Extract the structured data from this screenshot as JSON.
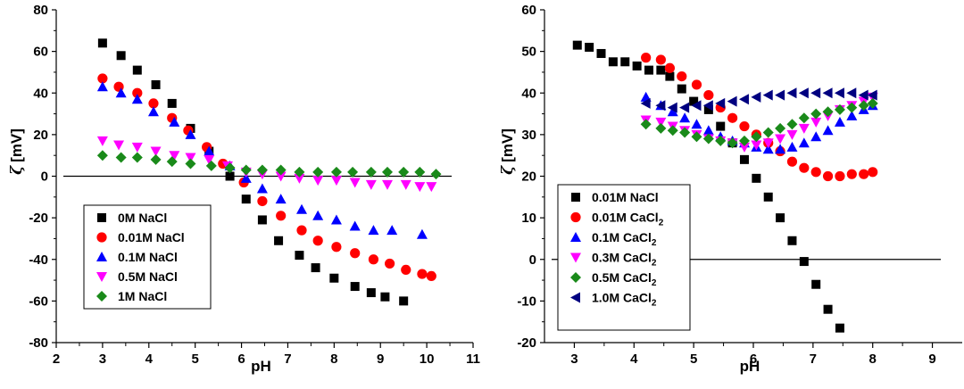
{
  "chart_data": [
    {
      "type": "scatter",
      "id": "left",
      "title": "",
      "xlabel": "pH",
      "ylabel": "ζ [mV]",
      "ylabel_symbol": "ζ",
      "ylabel_unit": "[mV]",
      "xlim": [
        2,
        11
      ],
      "ylim": [
        -80,
        80
      ],
      "x_ticks": [
        2,
        3,
        4,
        5,
        6,
        7,
        8,
        9,
        10,
        11
      ],
      "y_ticks": [
        -80,
        -60,
        -40,
        -20,
        0,
        20,
        40,
        60,
        80
      ],
      "zero_line": true,
      "legend": "bottom-left",
      "series": [
        {
          "name": "0M NaCl",
          "marker": "square",
          "color": "#000000",
          "x": [
            3.0,
            3.4,
            3.75,
            4.15,
            4.5,
            4.9,
            5.3,
            5.75,
            6.1,
            6.45,
            6.8,
            7.25,
            7.6,
            8.0,
            8.45,
            8.8,
            9.1,
            9.5
          ],
          "y": [
            64,
            58,
            51,
            44,
            35,
            23,
            12,
            0,
            -11,
            -21,
            -31,
            -38,
            -44,
            -49,
            -53,
            -56,
            -58,
            -60
          ]
        },
        {
          "name": "0.01M NaCl",
          "marker": "circle",
          "color": "#ff0000",
          "x": [
            3.0,
            3.35,
            3.75,
            4.1,
            4.5,
            4.85,
            5.25,
            5.6,
            6.05,
            6.45,
            6.85,
            7.3,
            7.65,
            8.05,
            8.45,
            8.85,
            9.2,
            9.55,
            9.9,
            10.1
          ],
          "y": [
            47,
            43,
            40,
            35,
            28,
            22,
            14,
            6,
            -3,
            -12,
            -19,
            -26,
            -31,
            -34,
            -37,
            -40,
            -42,
            -45,
            -47,
            -48
          ]
        },
        {
          "name": "0.1M NaCl",
          "marker": "triangle-up",
          "color": "#0000ff",
          "x": [
            3.0,
            3.4,
            3.75,
            4.1,
            4.55,
            4.9,
            5.3,
            5.75,
            6.1,
            6.45,
            6.85,
            7.3,
            7.65,
            8.05,
            8.45,
            8.85,
            9.25,
            9.9
          ],
          "y": [
            43,
            40,
            37,
            31,
            26,
            20,
            12,
            5,
            -1,
            -6,
            -11,
            -16,
            -19,
            -21,
            -24,
            -26,
            -26,
            -28
          ]
        },
        {
          "name": "0.5M NaCl",
          "marker": "triangle-down",
          "color": "#ff00ff",
          "x": [
            3.0,
            3.35,
            3.75,
            4.15,
            4.55,
            4.9,
            5.3,
            5.7,
            6.1,
            6.45,
            6.85,
            7.25,
            7.65,
            8.05,
            8.45,
            8.8,
            9.15,
            9.55,
            9.85,
            10.1
          ],
          "y": [
            17,
            15,
            14,
            12,
            10,
            9,
            8,
            5,
            2,
            1,
            0,
            -1,
            -2,
            -2,
            -3,
            -4,
            -4,
            -4,
            -5,
            -5
          ]
        },
        {
          "name": "1M NaCl",
          "marker": "diamond",
          "color": "#1a8a1a",
          "x": [
            3.0,
            3.4,
            3.75,
            4.15,
            4.5,
            4.9,
            5.35,
            5.75,
            6.1,
            6.45,
            6.85,
            7.25,
            7.65,
            8.05,
            8.4,
            8.8,
            9.15,
            9.5,
            9.85,
            10.2
          ],
          "y": [
            10,
            9,
            9,
            8,
            7,
            6,
            5,
            4,
            3,
            3,
            3,
            2,
            2,
            2,
            2,
            2,
            2,
            2,
            2,
            1
          ]
        }
      ]
    },
    {
      "type": "scatter",
      "id": "right",
      "title": "",
      "xlabel": "pH",
      "ylabel": "ζ [mV]",
      "ylabel_symbol": "ζ",
      "ylabel_unit": "[mV]",
      "xlim": [
        2.5,
        9.5
      ],
      "ylim": [
        -20,
        60
      ],
      "x_ticks": [
        3,
        4,
        5,
        6,
        7,
        8,
        9
      ],
      "y_ticks": [
        -20,
        -10,
        0,
        10,
        20,
        30,
        40,
        50,
        60
      ],
      "zero_line": true,
      "legend": "bottom-left",
      "series": [
        {
          "name": "0.01M NaCl",
          "legend_main": "0.01M NaCl",
          "legend_sub": "",
          "marker": "square",
          "color": "#000000",
          "x": [
            3.05,
            3.25,
            3.45,
            3.65,
            3.85,
            4.05,
            4.25,
            4.45,
            4.6,
            4.8,
            5.0,
            5.25,
            5.45,
            5.65,
            5.85,
            6.05,
            6.25,
            6.45,
            6.65,
            6.85,
            7.05,
            7.25,
            7.45
          ],
          "y": [
            51.5,
            51,
            49.5,
            47.5,
            47.5,
            46.5,
            45.5,
            45.5,
            44,
            41,
            38,
            36,
            32,
            28,
            24,
            19.5,
            15,
            10,
            4.5,
            -0.5,
            -6,
            -12,
            -16.5
          ]
        },
        {
          "name": "0.01M CaCl2",
          "legend_main": "0.01M CaCl",
          "legend_sub": "2",
          "marker": "circle",
          "color": "#ff0000",
          "x": [
            4.2,
            4.45,
            4.6,
            4.8,
            5.05,
            5.25,
            5.45,
            5.65,
            5.85,
            6.05,
            6.25,
            6.45,
            6.65,
            6.85,
            7.05,
            7.25,
            7.45,
            7.65,
            7.85,
            8.0
          ],
          "y": [
            48.5,
            48,
            46,
            44,
            42,
            39.5,
            36.5,
            34,
            32,
            30,
            28,
            26,
            23.5,
            22,
            21,
            20,
            20,
            20.5,
            20.5,
            21
          ]
        },
        {
          "name": "0.1M CaCl2",
          "legend_main": "0.1M CaCl",
          "legend_sub": "2",
          "marker": "triangle-up",
          "color": "#0000ff",
          "x": [
            4.2,
            4.45,
            4.65,
            4.85,
            5.05,
            5.25,
            5.45,
            5.65,
            5.85,
            6.05,
            6.25,
            6.45,
            6.65,
            6.85,
            7.05,
            7.25,
            7.45,
            7.65,
            7.85,
            8.0
          ],
          "y": [
            39,
            37,
            35.5,
            34,
            32.5,
            31,
            29.5,
            28.5,
            28,
            27,
            26.5,
            26.5,
            27,
            28,
            29.5,
            31,
            33,
            34.5,
            36,
            37
          ]
        },
        {
          "name": "0.3M CaCl2",
          "legend_main": "0.3M CaCl",
          "legend_sub": "2",
          "marker": "triangle-down",
          "color": "#ff00ff",
          "x": [
            4.2,
            4.45,
            4.65,
            4.85,
            5.05,
            5.25,
            5.45,
            5.65,
            5.85,
            6.05,
            6.25,
            6.45,
            6.65,
            6.85,
            7.05,
            7.25,
            7.45,
            7.65,
            7.85,
            8.0
          ],
          "y": [
            33.5,
            33,
            32,
            31,
            30,
            29,
            28.5,
            28,
            27,
            27.5,
            28,
            29,
            30,
            31.5,
            33,
            34.5,
            36,
            37,
            38,
            39
          ]
        },
        {
          "name": "0.5M CaCl2",
          "legend_main": "0.5M CaCl",
          "legend_sub": "2",
          "marker": "diamond",
          "color": "#1a8a1a",
          "x": [
            4.2,
            4.45,
            4.65,
            4.85,
            5.05,
            5.25,
            5.45,
            5.65,
            5.85,
            6.05,
            6.25,
            6.45,
            6.65,
            6.85,
            7.05,
            7.25,
            7.45,
            7.65,
            7.85,
            8.0
          ],
          "y": [
            32.5,
            31.5,
            31,
            30.5,
            29.5,
            29,
            28.5,
            28,
            28.5,
            29.5,
            30.5,
            31.5,
            32.5,
            34,
            35,
            35.5,
            36,
            36.5,
            37,
            37.5
          ]
        },
        {
          "name": "1.0M CaCl2",
          "legend_main": "1.0M CaCl",
          "legend_sub": "2",
          "marker": "triangle-left",
          "color": "#000080",
          "x": [
            4.2,
            4.45,
            4.65,
            4.85,
            5.05,
            5.25,
            5.45,
            5.65,
            5.85,
            6.05,
            6.25,
            6.45,
            6.65,
            6.85,
            7.05,
            7.25,
            7.45,
            7.65,
            7.85,
            8.0
          ],
          "y": [
            37.5,
            37,
            36.5,
            36.5,
            37,
            37,
            37.5,
            38,
            38.5,
            39,
            39.5,
            39.5,
            40,
            40,
            40,
            40,
            40,
            40,
            39.5,
            39.5
          ]
        }
      ]
    }
  ]
}
